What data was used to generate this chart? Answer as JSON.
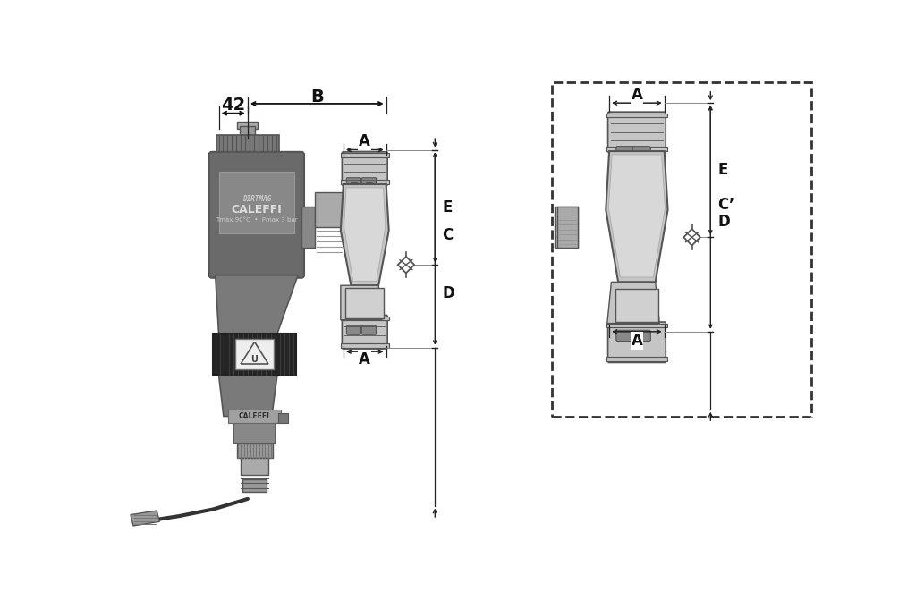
{
  "bg_color": "#ffffff",
  "lc": "#555555",
  "dc": "#222222",
  "device_body": "#6a6a6a",
  "device_dark": "#4a4a4a",
  "device_rib": "#777777",
  "device_light": "#aaaaaa",
  "device_label_bg": "#999999",
  "black_band": "#252525",
  "valve_gray": "#c5c5c5",
  "valve_mid": "#aaaaaa",
  "valve_dark": "#888888",
  "valve_inner": "#d8d8d8",
  "label_42": "42",
  "label_B": "B",
  "label_A": "A",
  "label_C": "C",
  "label_Cprime": "C’",
  "label_D": "D",
  "label_E": "E",
  "caleffi_text": "CALEFFI",
  "dirtmag_text": "DIRTMAG",
  "tmax_text": "Tmax 90°C  •  Pmax 3 bar"
}
